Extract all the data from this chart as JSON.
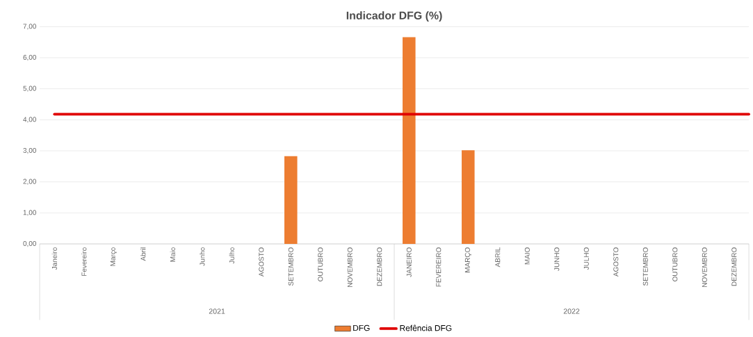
{
  "chart_data": {
    "type": "bar",
    "title": "Indicador DFG (%)",
    "categories": [
      "Janeiro",
      "Fevereiro",
      "Março",
      "Abril",
      "Maio",
      "Junho",
      "Julho",
      "AGOSTO",
      "SETEMBRO",
      "OUTUBRO",
      "NOVEMBRO",
      "DEZEMBRO",
      "JANEIRO",
      "FEVEREIRO",
      "MARÇO",
      "ABRIL",
      "MAIO",
      "JUNHO",
      "JULHO",
      "AGOSTO",
      "SETEMBRO",
      "OUTUBRO",
      "NOVEMBRO",
      "DEZEMBRO"
    ],
    "series": [
      {
        "name": "DFG",
        "color": "#ed7d31",
        "values": [
          null,
          null,
          null,
          null,
          null,
          null,
          null,
          null,
          2.83,
          null,
          null,
          null,
          6.66,
          null,
          3.02,
          null,
          null,
          null,
          null,
          null,
          null,
          null,
          null,
          null
        ]
      }
    ],
    "ref_lines": [
      {
        "axis": "y",
        "value": 4.18,
        "label": "Refência DFG",
        "color": "#e00000"
      }
    ],
    "annotations": [
      "2021",
      "2022"
    ],
    "ylim": [
      0,
      7
    ],
    "yticks": [
      {
        "value": 0,
        "label": "0,00"
      },
      {
        "value": 1,
        "label": "1,00"
      },
      {
        "value": 2,
        "label": "2,00"
      },
      {
        "value": 3,
        "label": "3,00"
      },
      {
        "value": 4,
        "label": "4,00"
      },
      {
        "value": 5,
        "label": "5,00"
      },
      {
        "value": 6,
        "label": "6,00"
      },
      {
        "value": 7,
        "label": "7,00"
      }
    ],
    "grid": "y",
    "legend": "bottom"
  }
}
